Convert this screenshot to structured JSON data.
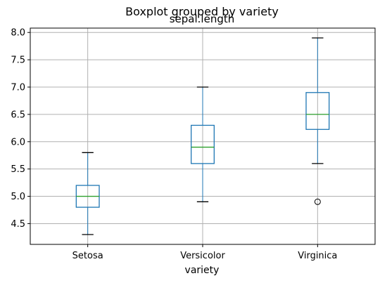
{
  "chart_data": {
    "type": "boxplot",
    "title": "Boxplot grouped by variety",
    "subtitle": "sepal.length",
    "xlabel": "variety",
    "ylabel": "",
    "categories": [
      "Setosa",
      "Versicolor",
      "Virginica"
    ],
    "ylim": [
      4.12,
      8.08
    ],
    "yticks": [
      4.5,
      5.0,
      5.5,
      6.0,
      6.5,
      7.0,
      7.5,
      8.0
    ],
    "ytick_labels": [
      "4.5",
      "5.0",
      "5.5",
      "6.0",
      "6.5",
      "7.0",
      "7.5",
      "8.0"
    ],
    "grid": true,
    "boxes": [
      {
        "whisker_low": 4.3,
        "q1": 4.8,
        "median": 5.0,
        "q3": 5.2,
        "whisker_high": 5.8,
        "outliers": []
      },
      {
        "whisker_low": 4.9,
        "q1": 5.6,
        "median": 5.9,
        "q3": 6.3,
        "whisker_high": 7.0,
        "outliers": []
      },
      {
        "whisker_low": 5.6,
        "q1": 6.225,
        "median": 6.5,
        "q3": 6.9,
        "whisker_high": 7.9,
        "outliers": [
          4.9
        ]
      }
    ],
    "colors": {
      "box": "#1f77b4",
      "median": "#2ca02c",
      "whisker": "#1f77b4",
      "cap": "#000000",
      "grid": "#b0b0b0",
      "axes": "#000000"
    }
  }
}
